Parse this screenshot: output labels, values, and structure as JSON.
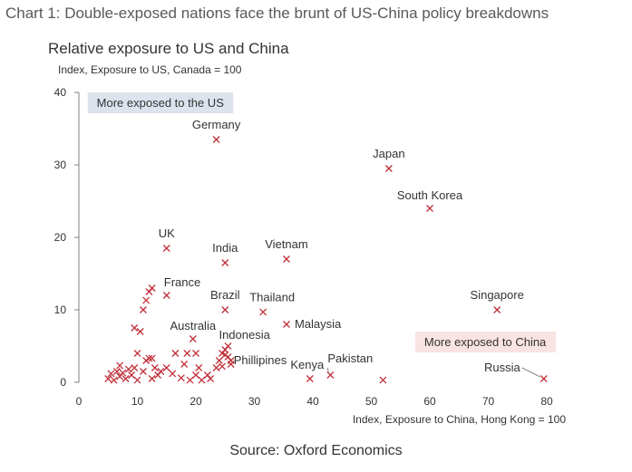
{
  "header": {
    "title": "Chart 1: Double-exposed nations face the brunt of US-China policy breakdowns"
  },
  "footer": {
    "source": "Source: Oxford Economics"
  },
  "colors": {
    "marker": "#c0303b",
    "axis": "#7f7f7f",
    "text": "#333333",
    "us_box": "#dce3ec",
    "china_box": "#f9e3e3"
  },
  "chart_data": {
    "type": "scatter",
    "title": "Relative exposure to US and China",
    "subtitle": "Index, Exposure to US, Canada = 100",
    "xlabel": "Index, Exposure to China, Hong Kong = 100",
    "ylabel": "Index, Exposure to US, Canada = 100",
    "xlim": [
      0,
      80
    ],
    "ylim": [
      0,
      40
    ],
    "xticks": [
      0,
      10,
      20,
      30,
      40,
      50,
      60,
      70,
      80
    ],
    "yticks": [
      0,
      10,
      20,
      30,
      40
    ],
    "grid": false,
    "marker": "x",
    "annotations": [
      {
        "text": "More exposed to the US",
        "anchor": [
          1.5,
          38.5
        ],
        "style": "us_box"
      },
      {
        "text": "More exposed to China",
        "anchor": [
          57.5,
          5.5
        ],
        "style": "china_box"
      }
    ],
    "labeled_points": [
      {
        "label": "Germany",
        "x": 23.5,
        "y": 33.5
      },
      {
        "label": "Japan",
        "x": 53,
        "y": 29.5
      },
      {
        "label": "South Korea",
        "x": 60,
        "y": 24
      },
      {
        "label": "UK",
        "x": 15,
        "y": 18.5
      },
      {
        "label": "India",
        "x": 25,
        "y": 16.5
      },
      {
        "label": "Vietnam",
        "x": 35.5,
        "y": 17
      },
      {
        "label": "France",
        "x": 15,
        "y": 12
      },
      {
        "label": "Brazil",
        "x": 25,
        "y": 10
      },
      {
        "label": "Thailand",
        "x": 31.5,
        "y": 9.7
      },
      {
        "label": "Singapore",
        "x": 71.5,
        "y": 10
      },
      {
        "label": "Malaysia",
        "x": 35.5,
        "y": 8
      },
      {
        "label": "Australia",
        "x": 19.5,
        "y": 6
      },
      {
        "label": "Indonesia",
        "x": 25.5,
        "y": 5
      },
      {
        "label": "Phillipines",
        "x": 26,
        "y": 3
      },
      {
        "label": "Kenya",
        "x": 39.5,
        "y": 0.5
      },
      {
        "label": "Pakistan",
        "x": 43,
        "y": 1
      },
      {
        "label": "Russia",
        "x": 79.5,
        "y": 0.5
      }
    ],
    "unlabeled_points": [
      {
        "x": 5,
        "y": 0.5
      },
      {
        "x": 5.5,
        "y": 1.2
      },
      {
        "x": 6,
        "y": 0.3
      },
      {
        "x": 6.5,
        "y": 1.5
      },
      {
        "x": 7,
        "y": 0.8
      },
      {
        "x": 7,
        "y": 2.3
      },
      {
        "x": 7.5,
        "y": 1.3
      },
      {
        "x": 8,
        "y": 0.5
      },
      {
        "x": 8.5,
        "y": 1.8
      },
      {
        "x": 9,
        "y": 1
      },
      {
        "x": 9.5,
        "y": 2
      },
      {
        "x": 10,
        "y": 0.3
      },
      {
        "x": 10,
        "y": 4
      },
      {
        "x": 9.5,
        "y": 7.5
      },
      {
        "x": 10.5,
        "y": 7
      },
      {
        "x": 11,
        "y": 10
      },
      {
        "x": 11.5,
        "y": 11.3
      },
      {
        "x": 12,
        "y": 12.5
      },
      {
        "x": 12.5,
        "y": 13
      },
      {
        "x": 11,
        "y": 1.5
      },
      {
        "x": 11.5,
        "y": 3
      },
      {
        "x": 12,
        "y": 3.3
      },
      {
        "x": 12.5,
        "y": 3.3
      },
      {
        "x": 12.5,
        "y": 0.5
      },
      {
        "x": 13,
        "y": 2
      },
      {
        "x": 13.5,
        "y": 1
      },
      {
        "x": 14,
        "y": 1.5
      },
      {
        "x": 15,
        "y": 2
      },
      {
        "x": 16,
        "y": 1.2
      },
      {
        "x": 16.5,
        "y": 4
      },
      {
        "x": 17.5,
        "y": 0.6
      },
      {
        "x": 18,
        "y": 2.5
      },
      {
        "x": 18.5,
        "y": 4
      },
      {
        "x": 19,
        "y": 0.3
      },
      {
        "x": 20,
        "y": 1
      },
      {
        "x": 20.5,
        "y": 2
      },
      {
        "x": 20,
        "y": 4
      },
      {
        "x": 21,
        "y": 0.3
      },
      {
        "x": 22,
        "y": 1
      },
      {
        "x": 22.5,
        "y": 0.5
      },
      {
        "x": 23.5,
        "y": 2
      },
      {
        "x": 24,
        "y": 3
      },
      {
        "x": 24.5,
        "y": 4
      },
      {
        "x": 25,
        "y": 4.5
      },
      {
        "x": 25.5,
        "y": 3.5
      },
      {
        "x": 24.5,
        "y": 2.2
      },
      {
        "x": 26,
        "y": 2.5
      },
      {
        "x": 25,
        "y": 3.8
      },
      {
        "x": 52,
        "y": 0.3
      }
    ]
  }
}
